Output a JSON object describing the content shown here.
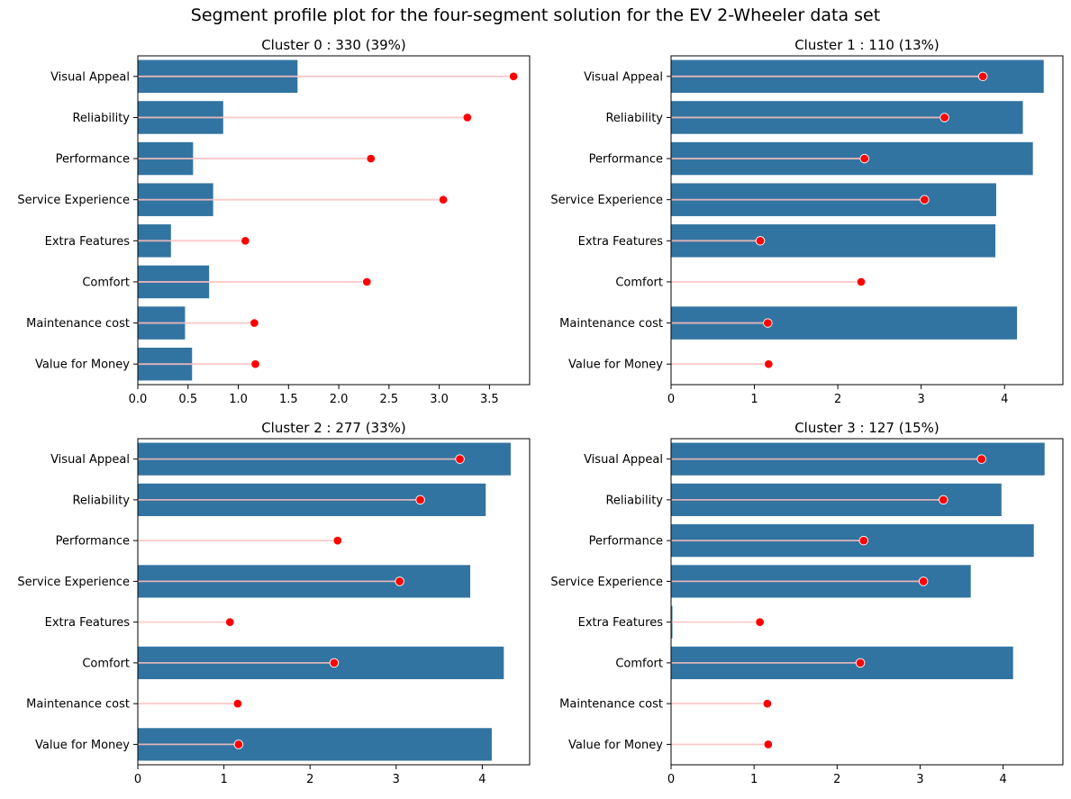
{
  "suptitle": "Segment profile plot for the four-segment solution for the EV 2-Wheeler data set",
  "colors": {
    "bar": "#3274a1",
    "marker": "#ff0000",
    "line": "#ffc0c0",
    "marker_edge": "#ffffff"
  },
  "chart_data": [
    {
      "type": "bar",
      "orientation": "horizontal",
      "title": "Cluster 0 : 330 (39%)",
      "categories": [
        "Visual Appeal",
        "Reliability",
        "Performance",
        "Service Experience",
        "Extra Features",
        "Comfort",
        "Maintenance cost",
        "Value for Money"
      ],
      "series": [
        {
          "values": [
            1.59,
            0.85,
            0.55,
            0.75,
            0.33,
            0.71,
            0.47,
            0.54
          ]
        },
        {
          "values": [
            3.74,
            3.28,
            2.32,
            3.04,
            1.07,
            2.28,
            1.16,
            1.17
          ]
        }
      ],
      "xlim": [
        0,
        3.9
      ],
      "xticks": [
        0.0,
        0.5,
        1.0,
        1.5,
        2.0,
        2.5,
        3.0,
        3.5
      ],
      "xtick_labels": [
        "0.0",
        "0.5",
        "1.0",
        "1.5",
        "2.0",
        "2.5",
        "3.0",
        "3.5"
      ]
    },
    {
      "type": "bar",
      "orientation": "horizontal",
      "title": "Cluster 1 : 110 (13%)",
      "categories": [
        "Visual Appeal",
        "Reliability",
        "Performance",
        "Service Experience",
        "Extra Features",
        "Comfort",
        "Maintenance cost",
        "Value for Money"
      ],
      "series": [
        {
          "values": [
            4.47,
            4.22,
            4.34,
            3.9,
            3.89,
            0.0,
            4.15,
            0.0
          ]
        },
        {
          "values": [
            3.74,
            3.28,
            2.32,
            3.04,
            1.07,
            2.28,
            1.16,
            1.17
          ]
        }
      ],
      "xlim": [
        0,
        4.7
      ],
      "xticks": [
        0,
        1,
        2,
        3,
        4
      ],
      "xtick_labels": [
        "0",
        "1",
        "2",
        "3",
        "4"
      ]
    },
    {
      "type": "bar",
      "orientation": "horizontal",
      "title": "Cluster 2 : 277 (33%)",
      "categories": [
        "Visual Appeal",
        "Reliability",
        "Performance",
        "Service Experience",
        "Extra Features",
        "Comfort",
        "Maintenance cost",
        "Value for Money"
      ],
      "series": [
        {
          "values": [
            4.33,
            4.04,
            0.0,
            3.86,
            0.0,
            4.25,
            0.0,
            4.11
          ]
        },
        {
          "values": [
            3.74,
            3.28,
            2.32,
            3.04,
            1.07,
            2.28,
            1.16,
            1.17
          ]
        }
      ],
      "xlim": [
        0,
        4.55
      ],
      "xticks": [
        0,
        1,
        2,
        3,
        4
      ],
      "xtick_labels": [
        "0",
        "1",
        "2",
        "3",
        "4"
      ]
    },
    {
      "type": "bar",
      "orientation": "horizontal",
      "title": "Cluster 3 : 127 (15%)",
      "categories": [
        "Visual Appeal",
        "Reliability",
        "Performance",
        "Service Experience",
        "Extra Features",
        "Comfort",
        "Maintenance cost",
        "Value for Money"
      ],
      "series": [
        {
          "values": [
            4.5,
            3.98,
            4.37,
            3.61,
            0.01,
            4.12,
            0.0,
            0.0
          ]
        },
        {
          "values": [
            3.74,
            3.28,
            2.32,
            3.04,
            1.07,
            2.28,
            1.16,
            1.17
          ]
        }
      ],
      "xlim": [
        0,
        4.72
      ],
      "xticks": [
        0,
        1,
        2,
        3,
        4
      ],
      "xtick_labels": [
        "0",
        "1",
        "2",
        "3",
        "4"
      ]
    }
  ]
}
